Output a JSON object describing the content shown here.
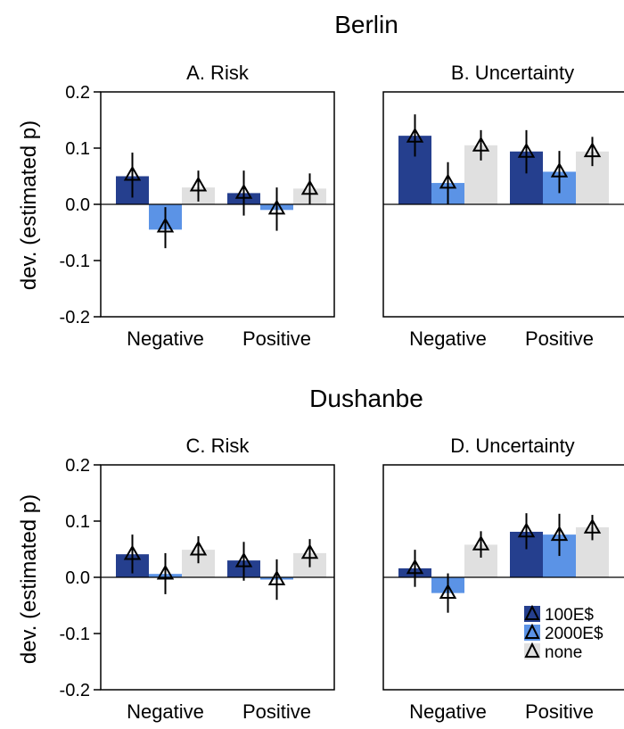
{
  "groups": [
    "Berlin",
    "Dushanbe"
  ],
  "ylabel": "dev. (estimated p)",
  "legend": [
    {
      "label": "100E$",
      "color": "#253f8e"
    },
    {
      "label": "2000E$",
      "color": "#5b93e6"
    },
    {
      "label": "none",
      "color": "#e0e0e0"
    }
  ],
  "chart_data": [
    {
      "type": "bar",
      "group": "Berlin",
      "title": "A. Risk",
      "categories": [
        "Negative",
        "Positive"
      ],
      "series": [
        {
          "name": "100E$",
          "color": "#253f8e",
          "values": [
            0.05,
            0.02
          ],
          "points": [
            0.052,
            0.02
          ],
          "lower": [
            0.012,
            -0.02
          ],
          "upper": [
            0.092,
            0.06
          ]
        },
        {
          "name": "2000E$",
          "color": "#5b93e6",
          "values": [
            -0.045,
            -0.01
          ],
          "points": [
            -0.04,
            -0.008
          ],
          "lower": [
            -0.078,
            -0.047
          ],
          "upper": [
            -0.005,
            0.03
          ]
        },
        {
          "name": "none",
          "color": "#e0e0e0",
          "values": [
            0.03,
            0.028
          ],
          "points": [
            0.033,
            0.027
          ],
          "lower": [
            0.005,
            0.0
          ],
          "upper": [
            0.06,
            0.055
          ]
        }
      ],
      "ylim": [
        -0.2,
        0.2
      ],
      "yticks": [
        "0.2",
        "0.1",
        "0.0",
        "-0.1",
        "-0.2"
      ],
      "legend_position": "none"
    },
    {
      "type": "bar",
      "group": "Berlin",
      "title": "B. Uncertainty",
      "categories": [
        "Negative",
        "Positive"
      ],
      "series": [
        {
          "name": "100E$",
          "color": "#253f8e",
          "values": [
            0.122,
            0.094
          ],
          "points": [
            0.12,
            0.093
          ],
          "lower": [
            0.085,
            0.055
          ],
          "upper": [
            0.16,
            0.132
          ]
        },
        {
          "name": "2000E$",
          "color": "#5b93e6",
          "values": [
            0.038,
            0.058
          ],
          "points": [
            0.038,
            0.058
          ],
          "lower": [
            0.0,
            0.02
          ],
          "upper": [
            0.075,
            0.095
          ]
        },
        {
          "name": "none",
          "color": "#e0e0e0",
          "values": [
            0.105,
            0.094
          ],
          "points": [
            0.104,
            0.094
          ],
          "lower": [
            0.078,
            0.068
          ],
          "upper": [
            0.132,
            0.12
          ]
        }
      ],
      "ylim": [
        -0.2,
        0.2
      ],
      "yticks": [],
      "legend_position": "none"
    },
    {
      "type": "bar",
      "group": "Dushanbe",
      "title": "C. Risk",
      "categories": [
        "Negative",
        "Positive"
      ],
      "series": [
        {
          "name": "100E$",
          "color": "#253f8e",
          "values": [
            0.041,
            0.03
          ],
          "points": [
            0.041,
            0.028
          ],
          "lower": [
            0.007,
            -0.006
          ],
          "upper": [
            0.076,
            0.063
          ]
        },
        {
          "name": "2000E$",
          "color": "#5b93e6",
          "values": [
            0.006,
            -0.004
          ],
          "points": [
            0.006,
            -0.004
          ],
          "lower": [
            -0.03,
            -0.04
          ],
          "upper": [
            0.043,
            0.032
          ]
        },
        {
          "name": "none",
          "color": "#e0e0e0",
          "values": [
            0.049,
            0.043
          ],
          "points": [
            0.049,
            0.043
          ],
          "lower": [
            0.025,
            0.018
          ],
          "upper": [
            0.073,
            0.068
          ]
        }
      ],
      "ylim": [
        -0.2,
        0.2
      ],
      "yticks": [
        "0.2",
        "0.1",
        "0.0",
        "-0.1",
        "-0.2"
      ],
      "legend_position": "none"
    },
    {
      "type": "bar",
      "group": "Dushanbe",
      "title": "D. Uncertainty",
      "categories": [
        "Negative",
        "Positive"
      ],
      "series": [
        {
          "name": "100E$",
          "color": "#253f8e",
          "values": [
            0.016,
            0.081
          ],
          "points": [
            0.016,
            0.081
          ],
          "lower": [
            -0.017,
            0.05
          ],
          "upper": [
            0.049,
            0.114
          ]
        },
        {
          "name": "2000E$",
          "color": "#5b93e6",
          "values": [
            -0.028,
            0.076
          ],
          "points": [
            -0.028,
            0.075
          ],
          "lower": [
            -0.063,
            0.038
          ],
          "upper": [
            0.007,
            0.113
          ]
        },
        {
          "name": "none",
          "color": "#e0e0e0",
          "values": [
            0.058,
            0.089
          ],
          "points": [
            0.058,
            0.088
          ],
          "lower": [
            0.035,
            0.066
          ],
          "upper": [
            0.082,
            0.111
          ]
        }
      ],
      "ylim": [
        -0.2,
        0.2
      ],
      "yticks": [],
      "legend_position": "bottom-right"
    }
  ]
}
